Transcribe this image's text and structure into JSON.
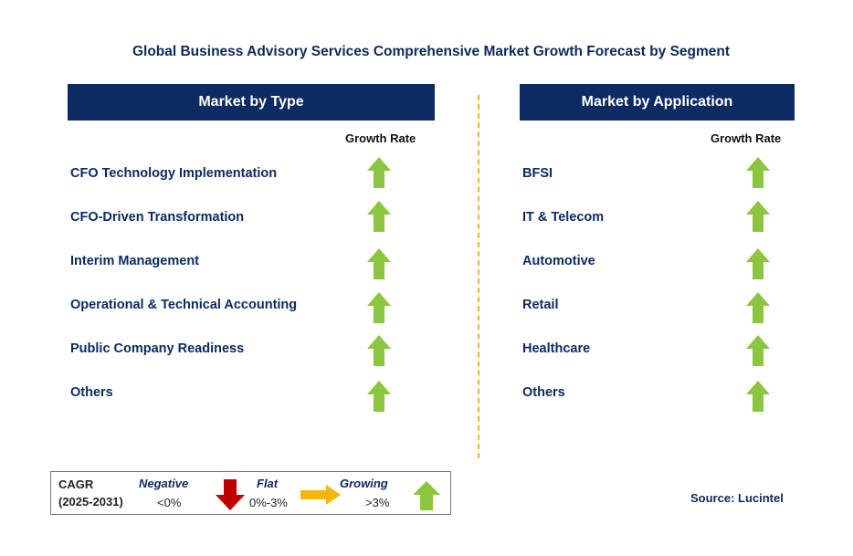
{
  "title": "Global Business Advisory Services Comprehensive Market Growth Forecast by Segment",
  "left_panel": {
    "header": "Market by Type",
    "growth_rate_label": "Growth Rate",
    "rows": [
      {
        "label": "CFO Technology Implementation",
        "trend": "growing"
      },
      {
        "label": "CFO-Driven Transformation",
        "trend": "growing"
      },
      {
        "label": "Interim Management",
        "trend": "growing"
      },
      {
        "label": "Operational & Technical Accounting",
        "trend": "growing"
      },
      {
        "label": "Public Company Readiness",
        "trend": "growing"
      },
      {
        "label": "Others",
        "trend": "growing"
      }
    ]
  },
  "right_panel": {
    "header": "Market by Application",
    "growth_rate_label": "Growth Rate",
    "rows": [
      {
        "label": "BFSI",
        "trend": "growing"
      },
      {
        "label": "IT & Telecom",
        "trend": "growing"
      },
      {
        "label": "Automotive",
        "trend": "growing"
      },
      {
        "label": "Retail",
        "trend": "growing"
      },
      {
        "label": "Healthcare",
        "trend": "growing"
      },
      {
        "label": "Others",
        "trend": "growing"
      }
    ]
  },
  "legend": {
    "cagr": "CAGR",
    "period": "(2025-2031)",
    "negative_label": "Negative",
    "negative_range": "<0%",
    "flat_label": "Flat",
    "flat_range": "0%-3%",
    "growing_label": "Growing",
    "growing_range": ">3%"
  },
  "source": "Source: Lucintel",
  "colors": {
    "header_bg": "#0d2a63",
    "growing_arrow": "#8cc540",
    "negative_arrow": "#c00000",
    "flat_arrow": "#f5b50a",
    "divider": "#f0b431"
  }
}
